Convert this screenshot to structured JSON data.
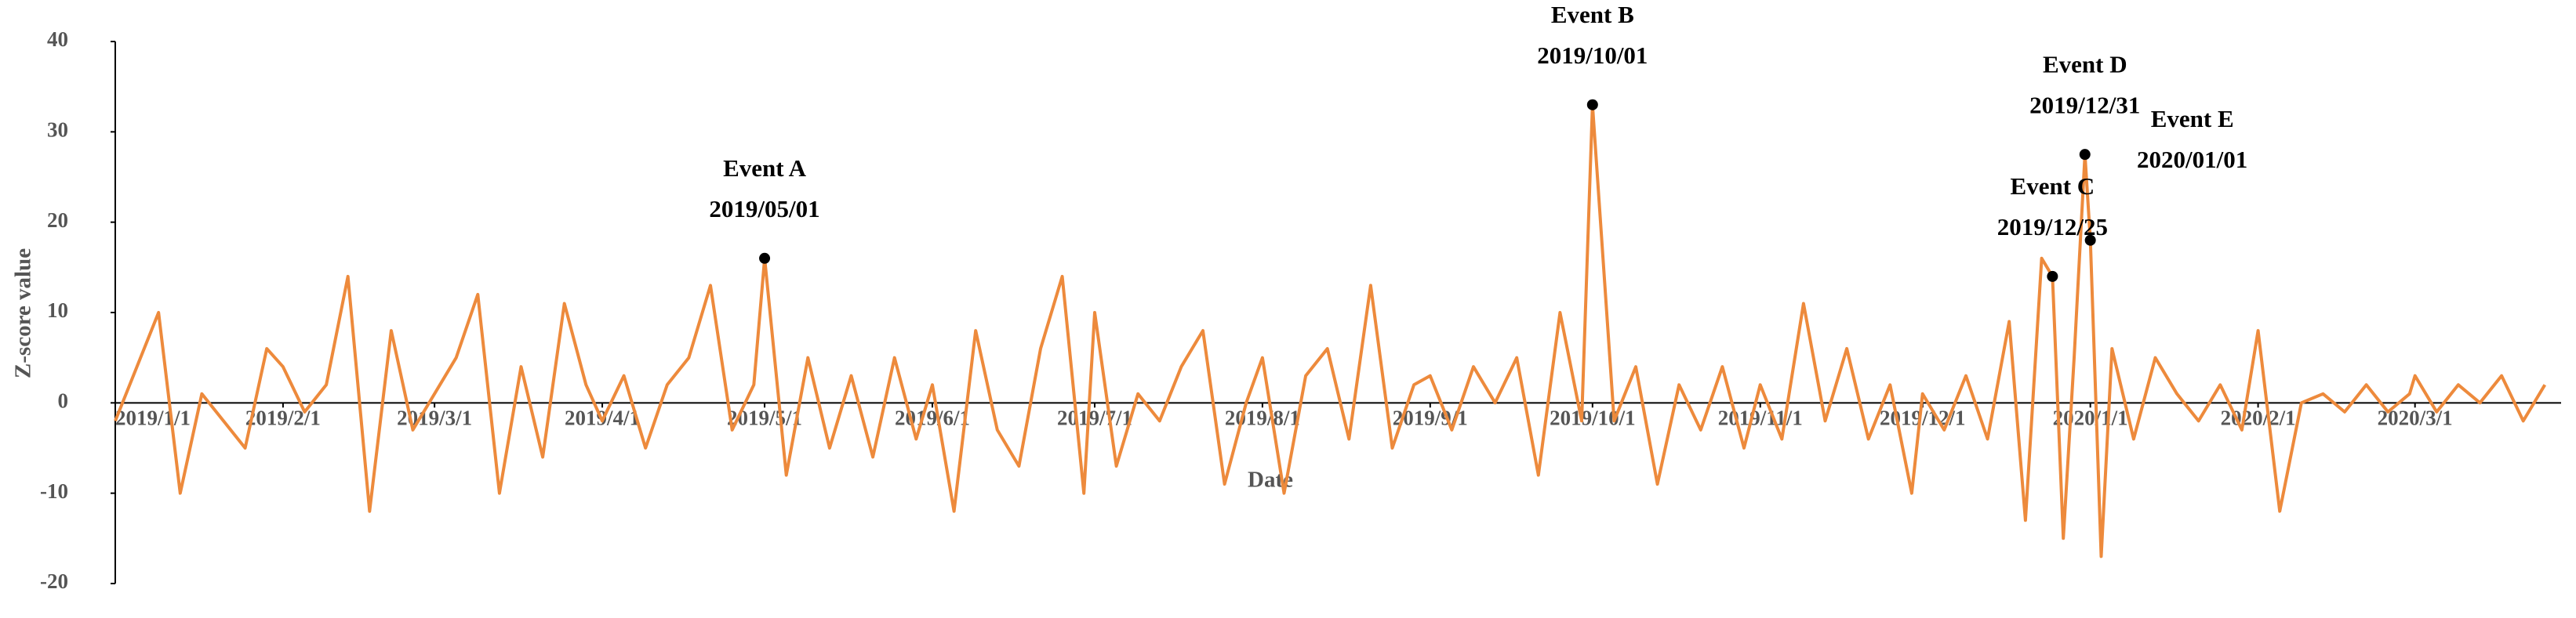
{
  "chart_data": {
    "type": "line",
    "y_label": "Z-score value",
    "x_label": "Date",
    "ylim": [
      -20,
      40
    ],
    "yticks": [
      -20,
      -10,
      0,
      10,
      20,
      30,
      40
    ],
    "xlim": [
      "2019/1/1",
      "2020/3/28"
    ],
    "xticks": [
      "2019/1/1",
      "2019/2/1",
      "2019/3/1",
      "2019/4/1",
      "2019/5/1",
      "2019/6/1",
      "2019/7/1",
      "2019/8/1",
      "2019/9/1",
      "2019/10/1",
      "2019/11/1",
      "2019/12/1",
      "2020/1/1",
      "2020/2/1",
      "2020/3/1"
    ],
    "x": [
      "2019/1/1",
      "2019/1/5",
      "2019/1/9",
      "2019/1/13",
      "2019/1/17",
      "2019/1/21",
      "2019/1/25",
      "2019/1/29",
      "2019/2/1",
      "2019/2/5",
      "2019/2/9",
      "2019/2/13",
      "2019/2/17",
      "2019/2/21",
      "2019/2/25",
      "2019/3/1",
      "2019/3/5",
      "2019/3/9",
      "2019/3/13",
      "2019/3/17",
      "2019/3/21",
      "2019/3/25",
      "2019/3/29",
      "2019/4/1",
      "2019/4/5",
      "2019/4/9",
      "2019/4/13",
      "2019/4/17",
      "2019/4/21",
      "2019/4/25",
      "2019/4/29",
      "2019/5/1",
      "2019/5/5",
      "2019/5/9",
      "2019/5/13",
      "2019/5/17",
      "2019/5/21",
      "2019/5/25",
      "2019/5/29",
      "2019/6/1",
      "2019/6/5",
      "2019/6/9",
      "2019/6/13",
      "2019/6/17",
      "2019/6/21",
      "2019/6/25",
      "2019/6/29",
      "2019/7/1",
      "2019/7/5",
      "2019/7/9",
      "2019/7/13",
      "2019/7/17",
      "2019/7/21",
      "2019/7/25",
      "2019/7/29",
      "2019/8/1",
      "2019/8/5",
      "2019/8/9",
      "2019/8/13",
      "2019/8/17",
      "2019/8/21",
      "2019/8/25",
      "2019/8/29",
      "2019/9/1",
      "2019/9/5",
      "2019/9/9",
      "2019/9/13",
      "2019/9/17",
      "2019/9/21",
      "2019/9/25",
      "2019/9/29",
      "2019/10/1",
      "2019/10/5",
      "2019/10/9",
      "2019/10/13",
      "2019/10/17",
      "2019/10/21",
      "2019/10/25",
      "2019/10/29",
      "2019/11/1",
      "2019/11/5",
      "2019/11/9",
      "2019/11/13",
      "2019/11/17",
      "2019/11/21",
      "2019/11/25",
      "2019/11/29",
      "2019/12/1",
      "2019/12/5",
      "2019/12/9",
      "2019/12/13",
      "2019/12/17",
      "2019/12/20",
      "2019/12/23",
      "2019/12/25",
      "2019/12/27",
      "2019/12/29",
      "2019/12/31",
      "2020/1/1",
      "2020/1/3",
      "2020/1/5",
      "2020/1/9",
      "2020/1/13",
      "2020/1/17",
      "2020/1/21",
      "2020/1/25",
      "2020/1/29",
      "2020/2/1",
      "2020/2/5",
      "2020/2/9",
      "2020/2/13",
      "2020/2/17",
      "2020/2/21",
      "2020/2/25",
      "2020/2/29",
      "2020/3/1",
      "2020/3/5",
      "2020/3/9",
      "2020/3/13",
      "2020/3/17",
      "2020/3/21",
      "2020/3/25"
    ],
    "series": [
      {
        "color": "#ed8a3c",
        "values": [
          -2,
          4,
          10,
          -10,
          1,
          -2,
          -5,
          6,
          4,
          -1,
          2,
          14,
          -12,
          8,
          -3,
          1,
          5,
          12,
          -10,
          4,
          -6,
          11,
          2,
          -2,
          3,
          -5,
          2,
          5,
          13,
          -3,
          2,
          16,
          -8,
          5,
          -5,
          3,
          -6,
          5,
          -4,
          2,
          -12,
          8,
          -3,
          -7,
          6,
          14,
          -10,
          10,
          -7,
          1,
          -2,
          4,
          8,
          -9,
          0,
          5,
          -10,
          3,
          6,
          -4,
          13,
          -5,
          2,
          3,
          -3,
          4,
          0,
          5,
          -8,
          10,
          -2,
          33,
          -2,
          4,
          -9,
          2,
          -3,
          4,
          -5,
          2,
          -4,
          11,
          -2,
          6,
          -4,
          2,
          -10,
          1,
          -3,
          3,
          -4,
          9,
          -13,
          16,
          14,
          -15,
          5,
          27.5,
          18,
          -17,
          6,
          -4,
          5,
          1,
          -2,
          2,
          -3,
          8,
          -12,
          0,
          1,
          -1,
          2,
          -1,
          1,
          3,
          -1,
          2,
          0,
          3,
          -2,
          2
        ]
      }
    ],
    "annotations": [
      {
        "text": "Event A",
        "date": "2019/05/01",
        "value": 16
      },
      {
        "text": "Event B",
        "date": "2019/10/01",
        "value": 33
      },
      {
        "text": "Event C",
        "date": "2019/12/25",
        "value": 14
      },
      {
        "text": "Event D",
        "date": "2019/12/31",
        "value": 27.5
      },
      {
        "text": "Event E",
        "date": "2020/01/01",
        "value": 18
      }
    ]
  }
}
